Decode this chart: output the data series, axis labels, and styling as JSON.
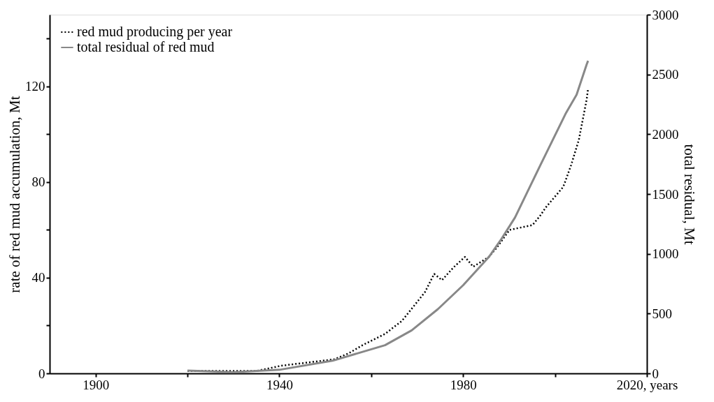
{
  "chart_data": {
    "type": "line",
    "xlabel": null,
    "ylabel": "rate of red mud accumulation, Mt",
    "y2label": "total residual, Mt",
    "xlim": [
      1890,
      2020
    ],
    "xticks": [
      1900,
      {
        "value": 1920,
        "label": null
      },
      1940,
      {
        "value": 1960,
        "label": null
      },
      1980,
      {
        "value": 2000,
        "label": null
      },
      {
        "value": 2020,
        "label": "2020, years"
      }
    ],
    "ylim": [
      0,
      150
    ],
    "yticks": [
      0,
      {
        "value": 20,
        "label": null
      },
      40,
      {
        "value": 60,
        "label": null
      },
      80,
      {
        "value": 100,
        "label": null
      },
      120,
      {
        "value": 140,
        "label": null
      }
    ],
    "y2lim": [
      0,
      3000
    ],
    "y2ticks": [
      0,
      500,
      1000,
      1500,
      2000,
      2500,
      3000
    ],
    "legend": "top left",
    "grid": false,
    "series": [
      {
        "name": "red mud producing per year",
        "color": "#000000",
        "line_style": "dotted",
        "axis": "y",
        "x": [
          1920,
          1935,
          1940.4,
          1952,
          1955,
          1958.3,
          1963,
          1966.7,
          1968.8,
          1971.7,
          1973.7,
          1975.4,
          1977.9,
          1980.4,
          1982.2,
          1985.6,
          1987.3,
          1990.1,
          1995.1,
          1996.8,
          1998,
          2001.8,
          2003.5,
          2005.2,
          2006.9,
          2007.2
        ],
        "values": [
          1,
          1,
          3.2,
          5.9,
          8.3,
          12,
          16.5,
          22,
          27,
          34,
          41.6,
          39,
          44.3,
          48.7,
          44.6,
          48.7,
          52.5,
          60,
          62,
          66,
          69.4,
          78,
          87,
          97.7,
          114.6,
          119
        ]
      },
      {
        "name": "total residual of red mud",
        "color": "#888888",
        "line_style": "solid",
        "axis": "y2",
        "x": [
          1920,
          1930,
          1940,
          1951.6,
          1963,
          1968.8,
          1974.5,
          1980,
          1985.6,
          1988.4,
          1991.3,
          1996.8,
          2002.3,
          2004.7,
          2006.9,
          2007.2
        ],
        "values": [
          24,
          10,
          30,
          106,
          236,
          360,
          537,
          737,
          973,
          1127,
          1304,
          1740,
          2171,
          2330,
          2584,
          2614
        ]
      }
    ]
  }
}
